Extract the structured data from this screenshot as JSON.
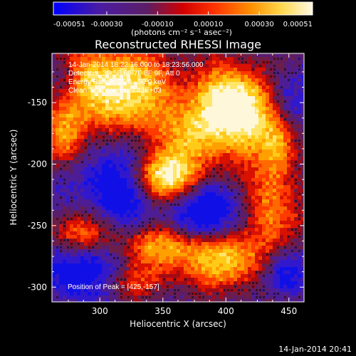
{
  "chart_data": {
    "type": "heatmap",
    "title": "Reconstructed RHESSI Image",
    "xlabel": "Heliocentric X (arcsec)",
    "ylabel": "Heliocentric Y (arcsec)",
    "xlim": [
      262,
      462
    ],
    "ylim": [
      -312,
      -110
    ],
    "x_ticks": [
      300,
      350,
      400,
      450
    ],
    "x_tick_labels": [
      "300",
      "350",
      "400",
      "450"
    ],
    "y_ticks": [
      -150,
      -200,
      -250,
      -300
    ],
    "y_tick_labels": [
      "-150",
      "-200",
      "-250",
      "-300"
    ],
    "colorbar": {
      "min": -0.00051,
      "max": 0.00051,
      "ticks": [
        -0.00051,
        -0.0003,
        -0.0001,
        0.0001,
        0.0003,
        0.00051
      ],
      "tick_labels": [
        "-0.00051",
        "-0.00030",
        "-0.00010",
        "0.00010",
        "0.00030",
        "0.00051"
      ],
      "units_label": "(photons cm⁻² s⁻¹ asec⁻²)"
    },
    "annotations": [
      "14-Jan-2014 18:22:16.000 to 18:23:56.000",
      "Detectors: 3F 5F 6F 7F 8F 9F, Att 0",
      "Energy Range: 25.0 - 50.0 keV",
      "Clean     Total counts: 3.43E+03"
    ],
    "peak_label": "Position of Peak = [425,-157]",
    "peak_position": [
      425,
      -157
    ],
    "colors": {
      "background": "#000000",
      "axes": "#ffffff",
      "text": "#ffffff"
    }
  },
  "footer": {
    "timestamp": "14-Jan-2014 20:41"
  }
}
